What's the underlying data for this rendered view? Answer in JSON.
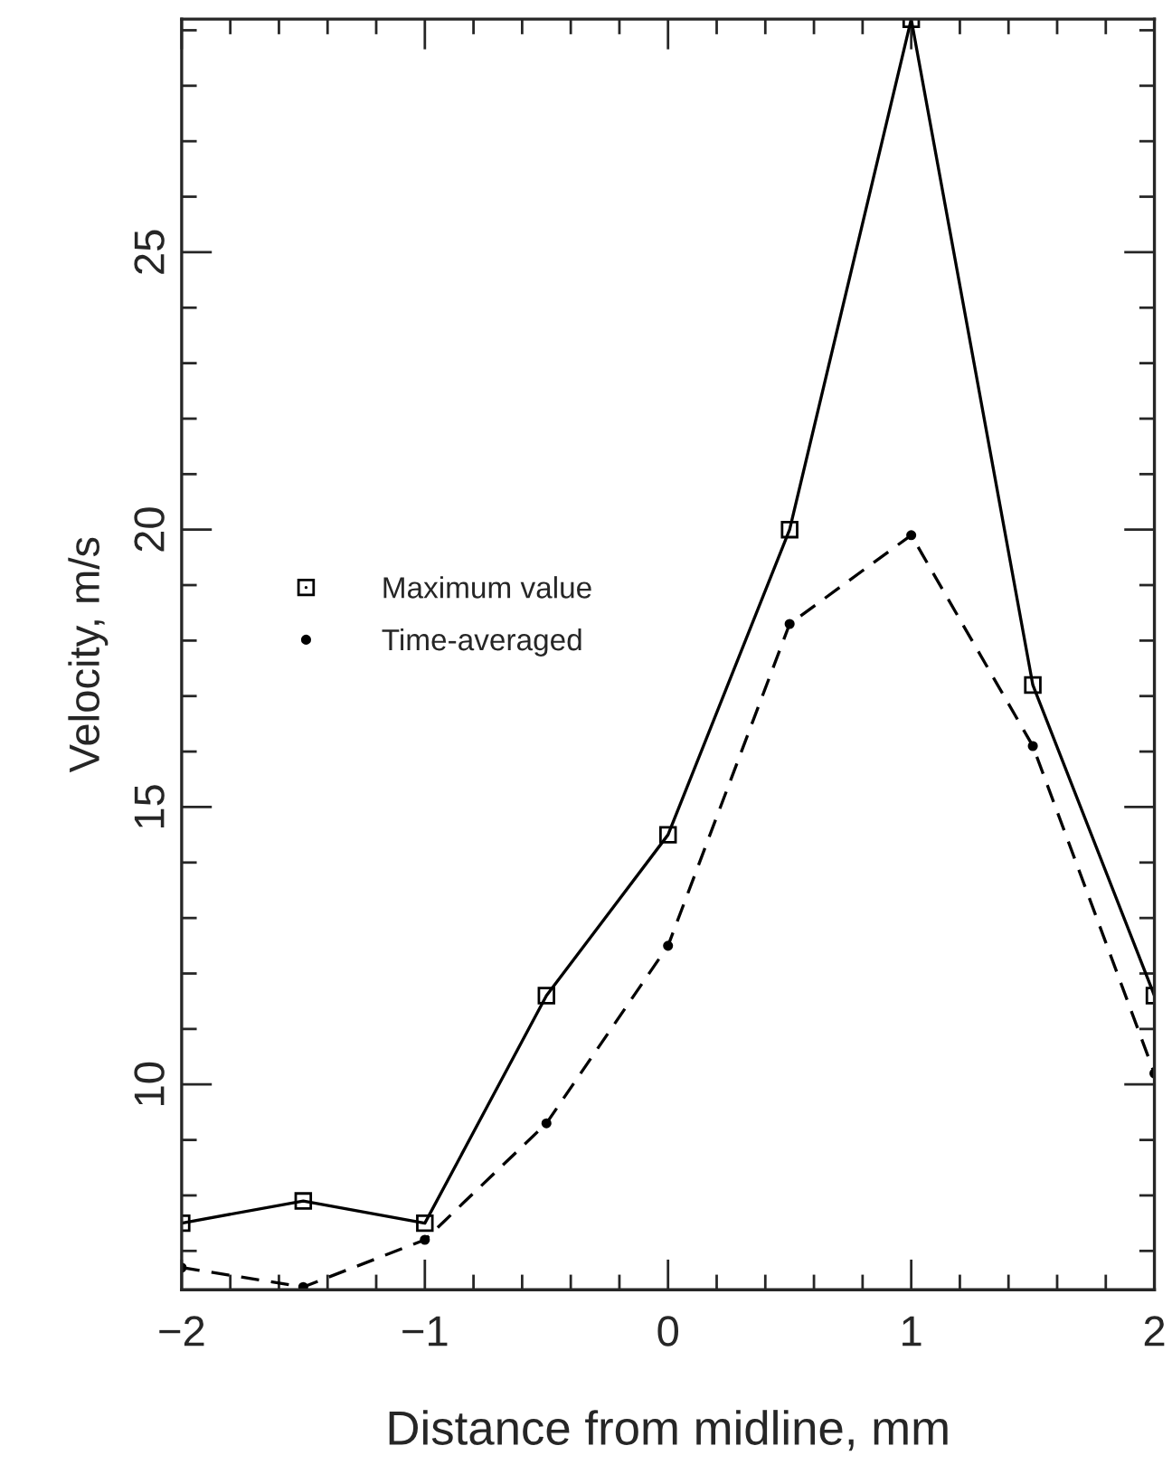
{
  "chart_data": {
    "type": "line",
    "xlabel": "Distance from midline, mm",
    "ylabel": "Velocity, m/s",
    "x": [
      -2,
      -1.5,
      -1,
      -0.5,
      0,
      0.5,
      1,
      1.5,
      2
    ],
    "series": [
      {
        "name": "Maximum value",
        "color": "#000000",
        "marker": "square",
        "line_style": "solid",
        "values": [
          7.5,
          7.9,
          7.5,
          11.6,
          14.5,
          20.0,
          29.2,
          17.2,
          11.6
        ]
      },
      {
        "name": "Time-averaged",
        "color": "#000000",
        "marker": "circle",
        "line_style": "dashed",
        "values": [
          6.7,
          6.35,
          7.2,
          9.3,
          12.5,
          18.3,
          19.9,
          16.1,
          10.2
        ]
      }
    ],
    "xlim": [
      -2,
      2
    ],
    "xticks": [
      {
        "value": -2,
        "label": "−2"
      },
      {
        "value": -1,
        "label": "−1"
      },
      0,
      1,
      2
    ],
    "ylim": [
      6.3,
      29.2
    ],
    "yticks": [
      10,
      15,
      20,
      25
    ],
    "grid": false,
    "legend": "center left"
  }
}
